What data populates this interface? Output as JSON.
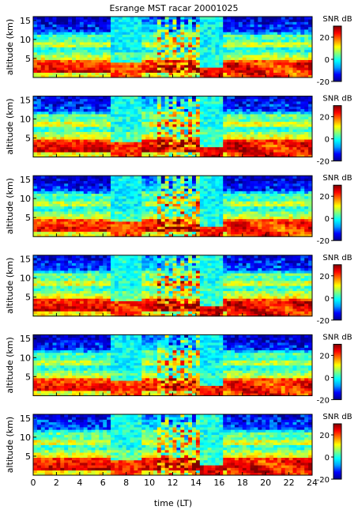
{
  "chart_data": {
    "type": "heatmap",
    "title": "Esrange MST racar 20001025",
    "xlabel": "time (LT)",
    "ylabel": "altitude (km)",
    "xlim": [
      0,
      24
    ],
    "ylim": [
      0,
      16
    ],
    "x_ticks": [
      "0",
      "2",
      "4",
      "6",
      "8",
      "10",
      "12",
      "14",
      "16",
      "18",
      "20",
      "22",
      "24"
    ],
    "y_ticks": [
      "5",
      "10",
      "15"
    ],
    "colorbar": {
      "label": "SNR dB",
      "range": [
        -20,
        30
      ],
      "ticks": [
        "20",
        "0",
        "-20"
      ],
      "colormap": [
        "#00008f",
        "#0000ff",
        "#00a0ff",
        "#00ffff",
        "#80ff80",
        "#ffff00",
        "#ff8000",
        "#ff0000",
        "#800000"
      ]
    },
    "panels": [
      {
        "index": 1,
        "ylabel": "altitude (km)",
        "cbar_label": "SNR dB"
      },
      {
        "index": 2,
        "ylabel": "altitude (km)",
        "cbar_label": "SNR dB"
      },
      {
        "index": 3,
        "ylabel": "altitude (km)",
        "cbar_label": "SNR dB"
      },
      {
        "index": 4,
        "ylabel": "altitude (km)",
        "cbar_label": "SNR dB"
      },
      {
        "index": 5,
        "ylabel": "altitude (km)",
        "cbar_label": "SNR dB"
      },
      {
        "index": 6,
        "ylabel": "altitude (km)",
        "cbar_label": "SNR dB"
      }
    ]
  }
}
